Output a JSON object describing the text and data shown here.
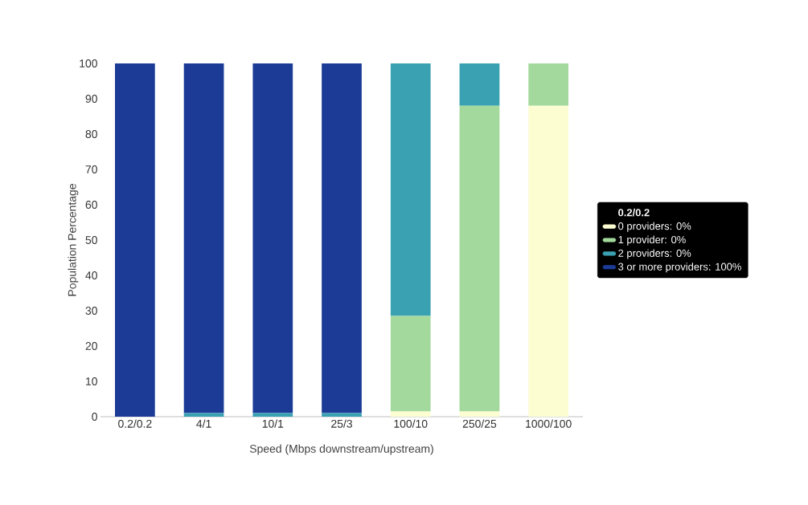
{
  "chart_data": {
    "type": "bar",
    "stacked": true,
    "xlabel": "Speed (Mbps downstream/upstream)",
    "ylabel": "Population Percentage",
    "categories": [
      "0.2/0.2",
      "4/1",
      "10/1",
      "25/3",
      "100/10",
      "250/25",
      "1000/100"
    ],
    "legend_title": "0.2/0.2",
    "legend": "right",
    "series": [
      {
        "name": "0 providers: 0%",
        "color": "#fdfdd2",
        "values": [
          0,
          0,
          0,
          0,
          1.5,
          1.5,
          88
        ]
      },
      {
        "name": "1 provider: 0%",
        "color": "#a3d99c",
        "values": [
          0,
          0,
          0,
          0,
          27,
          86.5,
          12
        ]
      },
      {
        "name": "2 providers: 0%",
        "color": "#3aa1b2",
        "values": [
          0,
          1,
          1,
          1,
          71.5,
          12,
          0
        ]
      },
      {
        "name": "3 or more providers: 100%",
        "color": "#1b3b97",
        "values": [
          100,
          99,
          99,
          99,
          0,
          0,
          0
        ]
      }
    ],
    "ylim": [
      0,
      100
    ],
    "yticks": [
      0,
      10,
      20,
      30,
      40,
      50,
      60,
      70,
      80,
      90,
      100
    ]
  }
}
